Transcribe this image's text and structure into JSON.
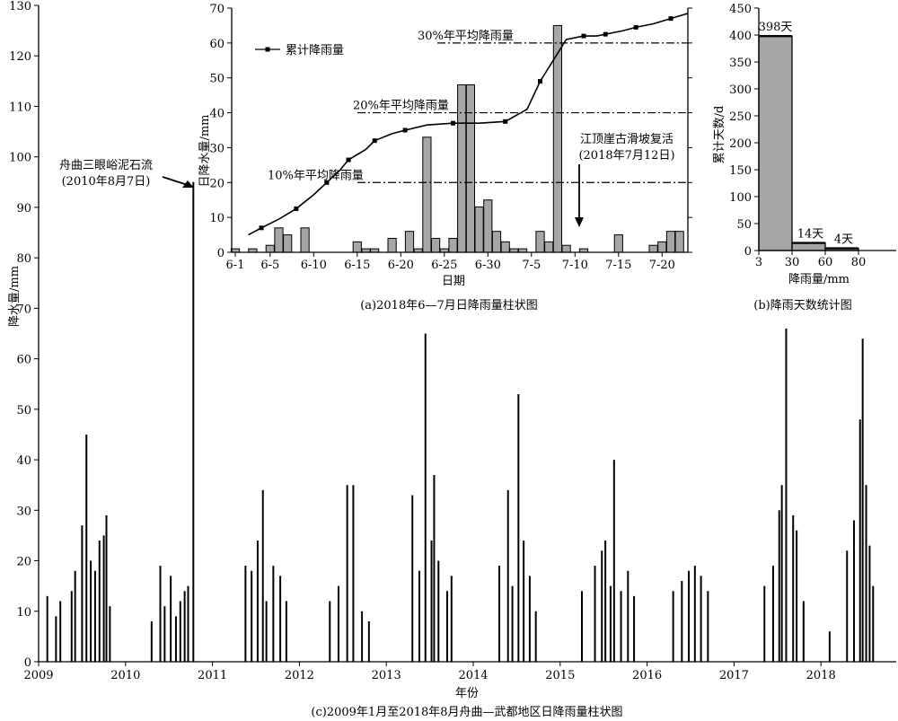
{
  "chart_data": [
    {
      "id": "c",
      "type": "bar",
      "caption": "(c)2009年1月至2018年8月舟曲—武都地区日降雨量柱状图",
      "xlabel": "年份",
      "ylabel": "降水量/mm",
      "ylim": [
        0,
        130
      ],
      "y_ticks": [
        0,
        10,
        20,
        30,
        40,
        50,
        60,
        70,
        80,
        90,
        100,
        110,
        120,
        130
      ],
      "x_ticks": [
        "2009",
        "2010",
        "2011",
        "2012",
        "2013",
        "2014",
        "2015",
        "2016",
        "2017",
        "2018"
      ],
      "annotation": {
        "lines": [
          "舟曲三眼峪泥石流",
          "(2010年8月7日)"
        ],
        "x": 2010.78,
        "y": 95
      },
      "peaks": [
        {
          "x": 2009.1,
          "y": 13
        },
        {
          "x": 2009.2,
          "y": 9
        },
        {
          "x": 2009.25,
          "y": 12
        },
        {
          "x": 2009.38,
          "y": 14
        },
        {
          "x": 2009.42,
          "y": 18
        },
        {
          "x": 2009.5,
          "y": 27
        },
        {
          "x": 2009.55,
          "y": 45
        },
        {
          "x": 2009.6,
          "y": 20
        },
        {
          "x": 2009.65,
          "y": 18
        },
        {
          "x": 2009.7,
          "y": 24
        },
        {
          "x": 2009.75,
          "y": 25
        },
        {
          "x": 2009.78,
          "y": 29
        },
        {
          "x": 2009.82,
          "y": 11
        },
        {
          "x": 2010.3,
          "y": 8
        },
        {
          "x": 2010.4,
          "y": 19
        },
        {
          "x": 2010.45,
          "y": 11
        },
        {
          "x": 2010.52,
          "y": 17
        },
        {
          "x": 2010.58,
          "y": 9
        },
        {
          "x": 2010.63,
          "y": 12
        },
        {
          "x": 2010.68,
          "y": 14
        },
        {
          "x": 2010.72,
          "y": 15
        },
        {
          "x": 2010.78,
          "y": 95
        },
        {
          "x": 2011.38,
          "y": 19
        },
        {
          "x": 2011.45,
          "y": 18
        },
        {
          "x": 2011.52,
          "y": 24
        },
        {
          "x": 2011.58,
          "y": 34
        },
        {
          "x": 2011.62,
          "y": 12
        },
        {
          "x": 2011.7,
          "y": 19
        },
        {
          "x": 2011.78,
          "y": 17
        },
        {
          "x": 2011.85,
          "y": 12
        },
        {
          "x": 2012.35,
          "y": 12
        },
        {
          "x": 2012.45,
          "y": 15
        },
        {
          "x": 2012.55,
          "y": 35
        },
        {
          "x": 2012.62,
          "y": 35
        },
        {
          "x": 2012.72,
          "y": 10
        },
        {
          "x": 2012.8,
          "y": 8
        },
        {
          "x": 2013.3,
          "y": 33
        },
        {
          "x": 2013.38,
          "y": 18
        },
        {
          "x": 2013.45,
          "y": 65
        },
        {
          "x": 2013.52,
          "y": 24
        },
        {
          "x": 2013.55,
          "y": 37
        },
        {
          "x": 2013.6,
          "y": 20
        },
        {
          "x": 2013.7,
          "y": 14
        },
        {
          "x": 2013.75,
          "y": 17
        },
        {
          "x": 2014.3,
          "y": 19
        },
        {
          "x": 2014.4,
          "y": 34
        },
        {
          "x": 2014.45,
          "y": 15
        },
        {
          "x": 2014.52,
          "y": 53
        },
        {
          "x": 2014.58,
          "y": 24
        },
        {
          "x": 2014.65,
          "y": 17
        },
        {
          "x": 2014.72,
          "y": 10
        },
        {
          "x": 2015.25,
          "y": 14
        },
        {
          "x": 2015.4,
          "y": 19
        },
        {
          "x": 2015.48,
          "y": 22
        },
        {
          "x": 2015.52,
          "y": 24
        },
        {
          "x": 2015.58,
          "y": 15
        },
        {
          "x": 2015.62,
          "y": 40
        },
        {
          "x": 2015.7,
          "y": 14
        },
        {
          "x": 2015.78,
          "y": 18
        },
        {
          "x": 2015.85,
          "y": 13
        },
        {
          "x": 2016.3,
          "y": 14
        },
        {
          "x": 2016.4,
          "y": 16
        },
        {
          "x": 2016.48,
          "y": 18
        },
        {
          "x": 2016.55,
          "y": 19
        },
        {
          "x": 2016.62,
          "y": 17
        },
        {
          "x": 2016.7,
          "y": 14
        },
        {
          "x": 2017.35,
          "y": 15
        },
        {
          "x": 2017.45,
          "y": 19
        },
        {
          "x": 2017.52,
          "y": 30
        },
        {
          "x": 2017.55,
          "y": 35
        },
        {
          "x": 2017.6,
          "y": 66
        },
        {
          "x": 2017.68,
          "y": 29
        },
        {
          "x": 2017.72,
          "y": 26
        },
        {
          "x": 2017.8,
          "y": 12
        },
        {
          "x": 2018.1,
          "y": 6
        },
        {
          "x": 2018.3,
          "y": 22
        },
        {
          "x": 2018.38,
          "y": 28
        },
        {
          "x": 2018.45,
          "y": 48
        },
        {
          "x": 2018.48,
          "y": 64
        },
        {
          "x": 2018.52,
          "y": 35
        },
        {
          "x": 2018.56,
          "y": 23
        },
        {
          "x": 2018.6,
          "y": 15
        }
      ]
    },
    {
      "id": "a",
      "type": "bar",
      "caption": "(a)2018年6—7月日降雨量柱状图",
      "xlabel": "日期",
      "ylabel": "日降水量/mm",
      "ylim": [
        0,
        70
      ],
      "y_ticks": [
        0,
        10,
        20,
        30,
        40,
        50,
        60,
        70
      ],
      "x_ticks": [
        "6-1",
        "6-5",
        "6-10",
        "6-15",
        "6-20",
        "6-25",
        "6-30",
        "7-5",
        "7-10",
        "7-15",
        "7-20"
      ],
      "categories": [
        "6-1",
        "6-2",
        "6-3",
        "6-4",
        "6-5",
        "6-6",
        "6-7",
        "6-8",
        "6-9",
        "6-10",
        "6-11",
        "6-12",
        "6-13",
        "6-14",
        "6-15",
        "6-16",
        "6-17",
        "6-18",
        "6-19",
        "6-20",
        "6-21",
        "6-22",
        "6-23",
        "6-24",
        "6-25",
        "6-26",
        "6-27",
        "6-28",
        "6-29",
        "6-30",
        "7-1",
        "7-2",
        "7-3",
        "7-4",
        "7-5",
        "7-6",
        "7-7",
        "7-8",
        "7-9",
        "7-10",
        "7-11",
        "7-12",
        "7-13",
        "7-14",
        "7-15",
        "7-16",
        "7-17",
        "7-18",
        "7-19",
        "7-20",
        "7-21",
        "7-22",
        "7-23"
      ],
      "values": [
        1,
        0,
        1,
        0,
        2,
        7,
        5,
        0,
        7,
        0,
        0,
        0,
        0,
        0,
        3,
        1,
        1,
        0,
        4,
        0,
        6,
        1,
        33,
        4,
        1,
        4,
        48,
        48,
        13,
        15,
        6,
        3,
        1,
        1,
        0,
        6,
        3,
        65,
        2,
        0,
        1,
        0,
        0,
        0,
        5,
        0,
        0,
        0,
        2,
        3,
        6,
        6,
        0
      ],
      "legend": "累计降雨量",
      "cumulative_days": [
        2.5,
        4,
        6,
        8,
        10,
        11.5,
        13,
        14,
        16,
        17,
        19,
        20.5,
        23,
        26,
        29,
        32,
        34.5,
        36,
        39,
        41,
        42.5,
        43.5,
        45.5,
        47,
        49,
        51,
        53
      ],
      "cumulative_pct": [
        5,
        7,
        9.5,
        12.5,
        16.5,
        20,
        23.5,
        26.5,
        29.5,
        32,
        34,
        35,
        36.5,
        37,
        37,
        37.5,
        41,
        49,
        61,
        62,
        62,
        62.5,
        63.5,
        64.5,
        65.5,
        67,
        68.5
      ],
      "reference_lines": [
        {
          "label": "10%年平均降雨量",
          "y": 20
        },
        {
          "label": "20%年平均降雨量",
          "y": 40
        },
        {
          "label": "30%年平均降雨量",
          "y": 60
        }
      ],
      "annotation": {
        "lines": [
          "江顶崖古滑坡复活",
          "(2018年7月12日)"
        ],
        "day": 42
      }
    },
    {
      "id": "b",
      "type": "bar",
      "caption": "(b)降雨天数统计图",
      "xlabel": "降雨量/mm",
      "ylabel": "累计天数/d",
      "ylim": [
        0,
        450
      ],
      "y_ticks": [
        0,
        50,
        100,
        150,
        200,
        250,
        300,
        350,
        400,
        450
      ],
      "x_tick_labels": [
        "3",
        "30",
        "60",
        "80"
      ],
      "bins": [
        {
          "from": 3,
          "to": 30,
          "value": 398,
          "label": "398天"
        },
        {
          "from": 30,
          "to": 60,
          "value": 14,
          "label": "14天"
        },
        {
          "from": 60,
          "to": 80,
          "value": 4,
          "label": "4天"
        }
      ]
    }
  ]
}
